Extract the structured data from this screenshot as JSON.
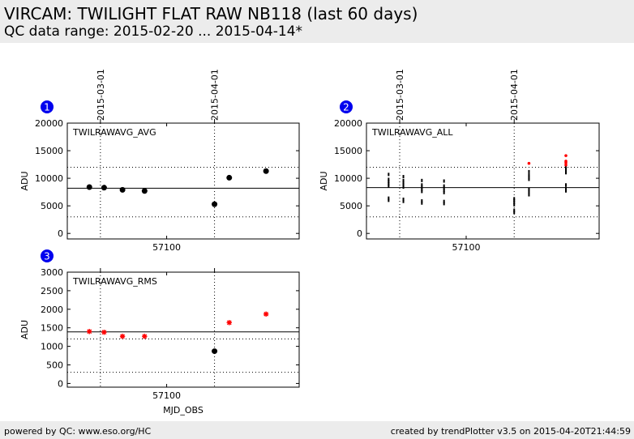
{
  "header": {
    "title": "VIRCAM: TWILIGHT FLAT RAW NB118 (last 60 days)",
    "subtitle": "QC data range: 2015-02-20 ... 2015-04-14*"
  },
  "footer": {
    "left": "powered by QC: www.eso.org/HC",
    "right": "created by trendPlotter v3.5 on 2015-04-20T21:44:59"
  },
  "chart_data": [
    {
      "type": "scatter",
      "badge": "1",
      "label": "TWILRAWAVG_AVG",
      "xlabel": "",
      "ylabel": "ADU",
      "xlim": [
        57073,
        57136
      ],
      "ylim": [
        -1000,
        20000
      ],
      "yticks": [
        0,
        5000,
        10000,
        15000,
        20000
      ],
      "xticks": [
        57100
      ],
      "date_ticks": [
        {
          "label": "2015-03-01",
          "x": 57082
        },
        {
          "label": "2015-04-01",
          "x": 57113
        }
      ],
      "ref_line": 8200,
      "ref_band": [
        3000,
        12000
      ],
      "series": [
        {
          "color": "#000000",
          "marker": "dot",
          "points": [
            [
              57079,
              8400
            ],
            [
              57083,
              8300
            ],
            [
              57088,
              7900
            ],
            [
              57094,
              7700
            ],
            [
              57113,
              5300
            ],
            [
              57117,
              10100
            ],
            [
              57127,
              11300
            ]
          ]
        }
      ]
    },
    {
      "type": "scatter",
      "badge": "2",
      "label": "TWILRAWAVG_ALL",
      "xlabel": "",
      "ylabel": "ADU",
      "xlim": [
        57073,
        57136
      ],
      "ylim": [
        -1000,
        20000
      ],
      "yticks": [
        0,
        5000,
        10000,
        15000,
        20000
      ],
      "xticks": [
        57100
      ],
      "date_ticks": [
        {
          "label": "2015-03-01",
          "x": 57082
        },
        {
          "label": "2015-04-01",
          "x": 57113
        }
      ],
      "ref_line": 8300,
      "ref_band": [
        3000,
        12000
      ],
      "series": [
        {
          "color": "#000000",
          "marker": "tick",
          "points": [
            [
              57079,
              6000
            ],
            [
              57079,
              6400
            ],
            [
              57079,
              8600
            ],
            [
              57079,
              9000
            ],
            [
              57079,
              9400
            ],
            [
              57079,
              9800
            ],
            [
              57079,
              10700
            ],
            [
              57083,
              5800
            ],
            [
              57083,
              6200
            ],
            [
              57083,
              8400
            ],
            [
              57083,
              8800
            ],
            [
              57083,
              9200
            ],
            [
              57083,
              9600
            ],
            [
              57083,
              10300
            ],
            [
              57088,
              5500
            ],
            [
              57088,
              5900
            ],
            [
              57088,
              7600
            ],
            [
              57088,
              8000
            ],
            [
              57088,
              8400
            ],
            [
              57088,
              8800
            ],
            [
              57088,
              9600
            ],
            [
              57094,
              5400
            ],
            [
              57094,
              5800
            ],
            [
              57094,
              7400
            ],
            [
              57094,
              7800
            ],
            [
              57094,
              8200
            ],
            [
              57094,
              8600
            ],
            [
              57094,
              9500
            ],
            [
              57113,
              3800
            ],
            [
              57113,
              4200
            ],
            [
              57113,
              5200
            ],
            [
              57113,
              5600
            ],
            [
              57113,
              6000
            ],
            [
              57113,
              6300
            ],
            [
              57117,
              7000
            ],
            [
              57117,
              7500
            ],
            [
              57117,
              8000
            ],
            [
              57117,
              9800
            ],
            [
              57117,
              10200
            ],
            [
              57117,
              10600
            ],
            [
              57117,
              11200
            ],
            [
              57127,
              7700
            ],
            [
              57127,
              8200
            ],
            [
              57127,
              8800
            ],
            [
              57127,
              11000
            ],
            [
              57127,
              11400
            ],
            [
              57127,
              11800
            ],
            [
              57127,
              12200
            ]
          ]
        },
        {
          "color": "#ff0000",
          "marker": "smalldot",
          "points": [
            [
              57117,
              12700
            ],
            [
              57127,
              12400
            ],
            [
              57127,
              12800
            ],
            [
              57127,
              13100
            ],
            [
              57127,
              14100
            ]
          ]
        }
      ]
    },
    {
      "type": "scatter",
      "badge": "3",
      "label": "TWILRAWAVG_RMS",
      "xlabel": "MJD_OBS",
      "ylabel": "ADU",
      "xlim": [
        57073,
        57136
      ],
      "ylim": [
        -100,
        3000
      ],
      "yticks": [
        0,
        500,
        1000,
        1500,
        2000,
        2500,
        3000
      ],
      "xticks": [
        57100
      ],
      "date_ticks": [
        {
          "label": "",
          "x": 57082
        },
        {
          "label": "",
          "x": 57113
        }
      ],
      "ref_line": 1390,
      "ref_band": [
        300,
        1200
      ],
      "series": [
        {
          "color": "#000000",
          "marker": "dot",
          "points": [
            [
              57113,
              870
            ]
          ]
        },
        {
          "color": "#ff0000",
          "marker": "star",
          "points": [
            [
              57079,
              1400
            ],
            [
              57083,
              1380
            ],
            [
              57088,
              1270
            ],
            [
              57094,
              1270
            ],
            [
              57117,
              1640
            ],
            [
              57127,
              1870
            ]
          ]
        }
      ]
    }
  ]
}
